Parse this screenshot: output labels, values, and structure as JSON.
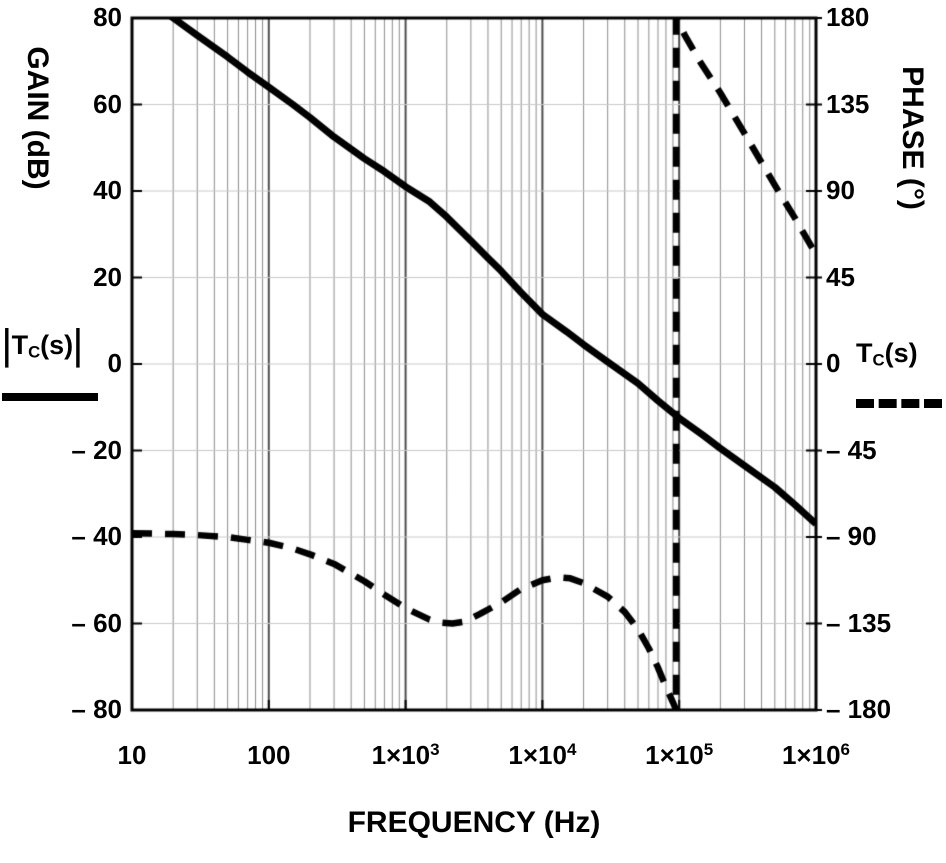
{
  "chart_data": {
    "type": "line",
    "title": "",
    "xlabel": "FREQUENCY (Hz)",
    "grid": {
      "vertical_minor_log": true,
      "horizontal_major": true
    },
    "x_axis": {
      "label": "FREQUENCY (Hz)",
      "scale": "log",
      "range": [
        10,
        1000000
      ],
      "tick_labels": [
        {
          "base": "10",
          "exp": ""
        },
        {
          "base": "100",
          "exp": ""
        },
        {
          "base": "1×10",
          "exp": "3"
        },
        {
          "base": "1×10",
          "exp": "4"
        },
        {
          "base": "1×10",
          "exp": "5"
        },
        {
          "base": "1×10",
          "exp": "6"
        }
      ]
    },
    "left_axis": {
      "label": "GAIN (dB)",
      "range": [
        -80,
        80
      ],
      "tick_step": 20,
      "tick_labels": [
        "80",
        "60",
        "40",
        "20",
        "0",
        "– 20",
        "– 40",
        "– 60",
        "– 80"
      ]
    },
    "right_axis": {
      "label": "PHASE (°)",
      "range": [
        -180,
        180
      ],
      "tick_step": 45,
      "tick_labels": [
        "180",
        "135",
        "90",
        "45",
        "0",
        "– 45",
        "– 90",
        "– 135",
        "– 180"
      ]
    },
    "legend": {
      "left": {
        "bar": "|",
        "t": "T",
        "sub": "C",
        "s": "(s)"
      },
      "right": {
        "t": "T",
        "sub": "C",
        "s": "(s)"
      }
    },
    "series": [
      {
        "name": "gain-magnitude |TC(s)|",
        "axis": "left",
        "line": "solid",
        "color": "#000000",
        "width": 7,
        "points": [
          [
            10,
            87
          ],
          [
            15,
            83
          ],
          [
            20,
            80
          ],
          [
            30,
            76
          ],
          [
            50,
            71
          ],
          [
            70,
            67.5
          ],
          [
            100,
            64
          ],
          [
            150,
            60
          ],
          [
            200,
            57
          ],
          [
            300,
            52.5
          ],
          [
            500,
            47.5
          ],
          [
            700,
            44.5
          ],
          [
            1000,
            41
          ],
          [
            1500,
            37.5
          ],
          [
            2000,
            34
          ],
          [
            3000,
            28.5
          ],
          [
            4000,
            24.5
          ],
          [
            5000,
            21.5
          ],
          [
            7000,
            16.5
          ],
          [
            10000,
            11.5
          ],
          [
            15000,
            7.5
          ],
          [
            20000,
            4.5
          ],
          [
            30000,
            0.5
          ],
          [
            50000,
            -4.5
          ],
          [
            70000,
            -8.5
          ],
          [
            100000,
            -12.5
          ],
          [
            150000,
            -16.5
          ],
          [
            200000,
            -19.5
          ],
          [
            300000,
            -23.5
          ],
          [
            500000,
            -28.5
          ],
          [
            700000,
            -32.5
          ],
          [
            1000000,
            -37
          ]
        ]
      },
      {
        "name": "phase TC(s)",
        "axis": "right",
        "line": "dashed",
        "color": "#000000",
        "width": 6.5,
        "dash": [
          20,
          13
        ],
        "points": [
          [
            10,
            -88
          ],
          [
            20,
            -88.5
          ],
          [
            30,
            -89
          ],
          [
            50,
            -90
          ],
          [
            70,
            -91.5
          ],
          [
            100,
            -93
          ],
          [
            150,
            -96
          ],
          [
            200,
            -99
          ],
          [
            300,
            -104
          ],
          [
            500,
            -113
          ],
          [
            700,
            -120
          ],
          [
            1000,
            -127
          ],
          [
            1500,
            -133
          ],
          [
            1800,
            -134.5
          ],
          [
            2200,
            -135
          ],
          [
            2700,
            -134
          ],
          [
            3500,
            -130
          ],
          [
            5000,
            -124
          ],
          [
            7000,
            -117
          ],
          [
            10000,
            -112.5
          ],
          [
            13000,
            -111
          ],
          [
            16000,
            -111.5
          ],
          [
            20000,
            -114
          ],
          [
            30000,
            -121
          ],
          [
            40000,
            -129
          ],
          [
            50000,
            -138
          ],
          [
            60000,
            -148
          ],
          [
            70000,
            -158
          ],
          [
            80000,
            -168
          ],
          [
            90000,
            -176
          ],
          [
            95000,
            -180
          ],
          [
            95000,
            180
          ],
          [
            110000,
            171
          ],
          [
            140000,
            158
          ],
          [
            200000,
            141
          ],
          [
            300000,
            120
          ],
          [
            500000,
            93
          ],
          [
            700000,
            76
          ],
          [
            1000000,
            57
          ]
        ]
      }
    ]
  }
}
